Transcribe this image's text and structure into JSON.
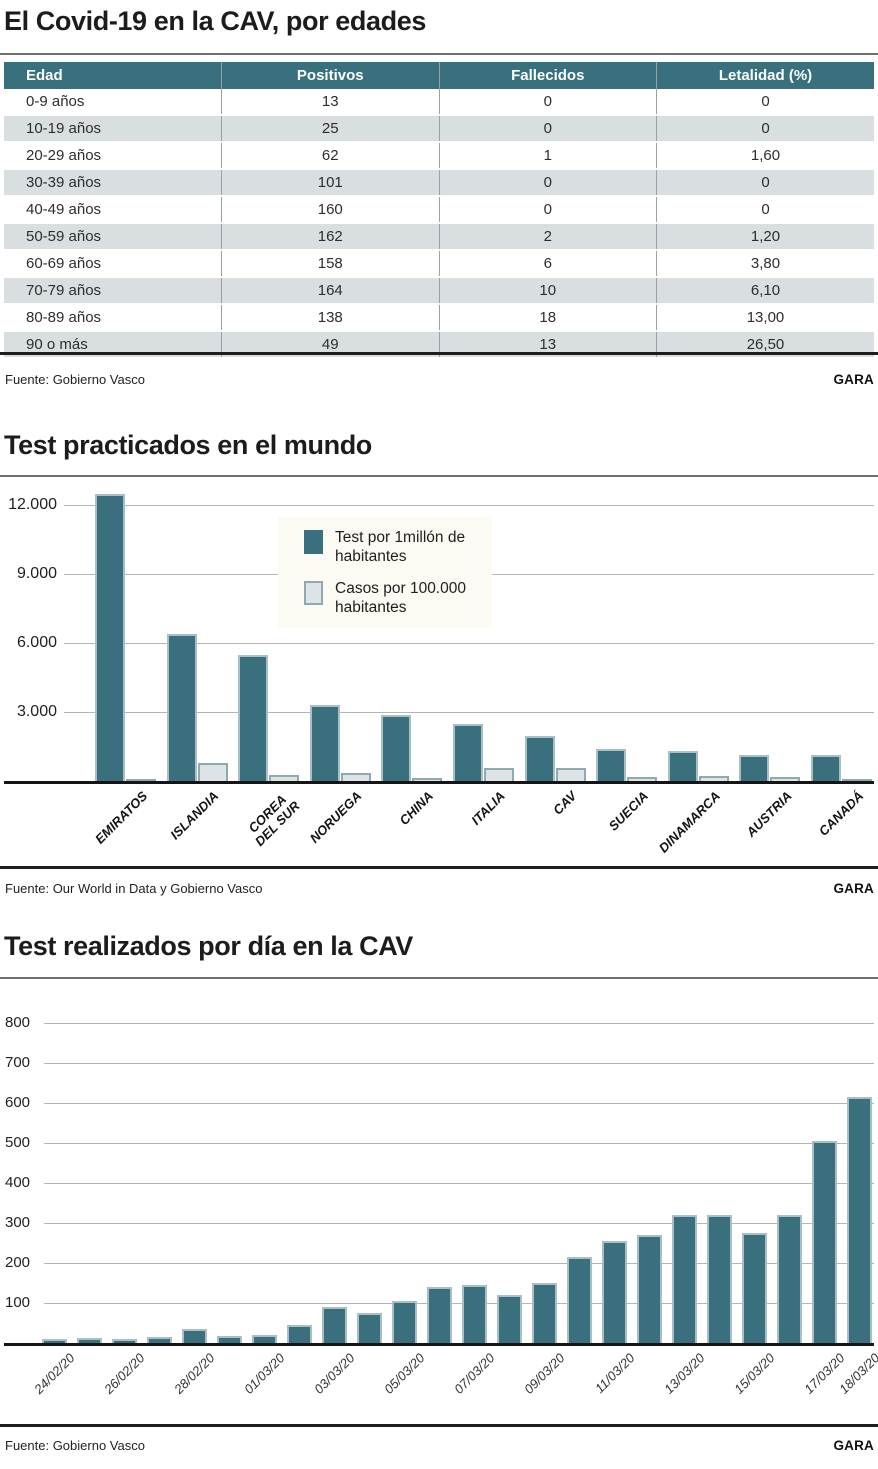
{
  "colors": {
    "teal": "#38707d",
    "bar_teal": "#3a6f7e",
    "bar_light_fill": "#dde4e8",
    "bar_light_border": "#8fa8b2",
    "row_shade": "#d9dee1",
    "gridline": "#b5b5b5",
    "axis": "#151515"
  },
  "sections": {
    "ages_table": {
      "title": "El Covid-19 en la CAV, por edades",
      "source": "Fuente: Gobierno Vasco",
      "credit": "GARA",
      "table": {
        "headers": [
          "Edad",
          "Positivos",
          "Fallecidos",
          "Letalidad (%)"
        ],
        "rows": [
          [
            "0-9 años",
            "13",
            "0",
            "0"
          ],
          [
            "10-19 años",
            "25",
            "0",
            "0"
          ],
          [
            "20-29 años",
            "62",
            "1",
            "1,60"
          ],
          [
            "30-39 años",
            "101",
            "0",
            "0"
          ],
          [
            "40-49 años",
            "160",
            "0",
            "0"
          ],
          [
            "50-59 años",
            "162",
            "2",
            "1,20"
          ],
          [
            "60-69 años",
            "158",
            "6",
            "3,80"
          ],
          [
            "70-79 años",
            "164",
            "10",
            "6,10"
          ],
          [
            "80-89 años",
            "138",
            "18",
            "13,00"
          ],
          [
            "90 o más",
            "49",
            "13",
            "26,50"
          ]
        ]
      }
    },
    "world_tests": {
      "title": "Test practicados en el mundo",
      "source": "Fuente: Our World in Data y Gobierno Vasco",
      "credit": "GARA"
    },
    "daily_tests": {
      "title": "Test realizados por día en la CAV",
      "source": "Fuente: Gobierno Vasco",
      "credit": "GARA"
    }
  },
  "chart_data": [
    {
      "type": "bar",
      "title": "Test practicados en el mundo",
      "categories": [
        "EMIRATOS",
        "ISLANDIA",
        "COREA\nDEL SUR",
        "NORUEGA",
        "CHINA",
        "ITALIA",
        "CAV",
        "SUECIA",
        "DINAMARCA",
        "AUSTRIA",
        "CANADÁ"
      ],
      "series": [
        {
          "name": "Test por 1millón de habitantes",
          "color": "#3a6f7e",
          "values": [
            12500,
            6400,
            5500,
            3300,
            2850,
            2500,
            1950,
            1400,
            1300,
            1150,
            1150
          ]
        },
        {
          "name": "Casos por 100.000 habitantes",
          "color": "#dde4e8",
          "values": [
            80,
            800,
            250,
            350,
            150,
            550,
            550,
            180,
            220,
            180,
            50
          ]
        }
      ],
      "yticks": [
        3000,
        6000,
        9000,
        12000
      ],
      "ytick_labels": [
        "3.000",
        "6.000",
        "9.000",
        "12.000"
      ],
      "ylim": [
        0,
        12870
      ],
      "grid": true,
      "legend_position": "upper center"
    },
    {
      "type": "bar",
      "title": "Test realizados por día en la CAV",
      "categories": [
        "24/02/20",
        "",
        "26/02/20",
        "",
        "28/02/20",
        "",
        "01/03/20",
        "",
        "03/03/20",
        "",
        "05/03/20",
        "",
        "07/03/20",
        "",
        "09/03/20",
        "",
        "11/03/20",
        "",
        "13/03/20",
        "",
        "15/03/20",
        "",
        "17/03/20",
        "18/03/20"
      ],
      "values": [
        10,
        12,
        10,
        15,
        35,
        18,
        20,
        45,
        90,
        75,
        105,
        140,
        145,
        120,
        150,
        215,
        255,
        270,
        320,
        320,
        275,
        320,
        505,
        615
      ],
      "yticks": [
        100,
        200,
        300,
        400,
        500,
        600,
        700,
        800
      ],
      "ytick_labels": [
        "100",
        "200",
        "300",
        "400",
        "500",
        "600",
        "700",
        "800"
      ],
      "ylim": [
        0,
        820
      ],
      "grid": true,
      "legend_position": "none"
    }
  ]
}
